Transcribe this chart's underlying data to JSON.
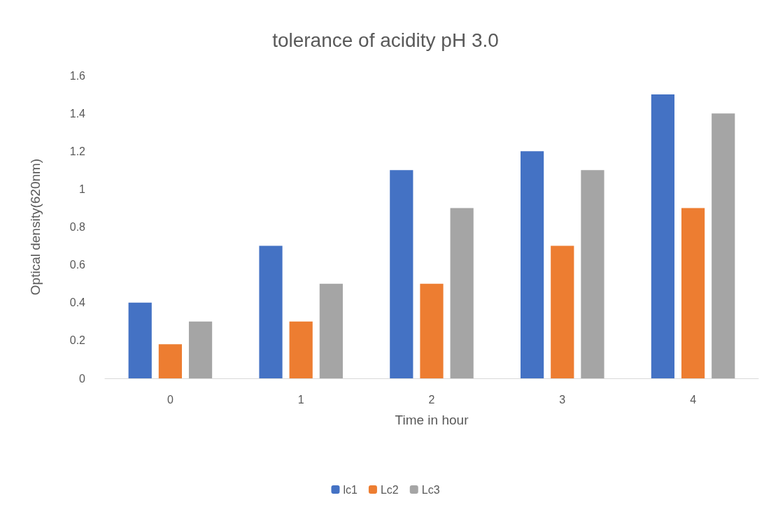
{
  "chart_data": {
    "type": "bar",
    "title": "tolerance of acidity pH 3.0",
    "xlabel": "Time in hour",
    "ylabel": "Optical density(620nm)",
    "categories": [
      "0",
      "1",
      "2",
      "3",
      "4"
    ],
    "series": [
      {
        "name": "lc1",
        "color": "#4472c4",
        "values": [
          0.4,
          0.7,
          1.1,
          1.2,
          1.5
        ]
      },
      {
        "name": "Lc2",
        "color": "#ed7d31",
        "values": [
          0.18,
          0.3,
          0.5,
          0.7,
          0.9
        ]
      },
      {
        "name": "Lc3",
        "color": "#a5a5a5",
        "values": [
          0.3,
          0.5,
          0.9,
          1.1,
          1.4
        ]
      }
    ],
    "ylim": [
      0,
      1.6
    ],
    "yticks": [
      0,
      0.2,
      0.4,
      0.6,
      0.8,
      1,
      1.2,
      1.4,
      1.6
    ],
    "grid": false,
    "legend": "bottom"
  }
}
